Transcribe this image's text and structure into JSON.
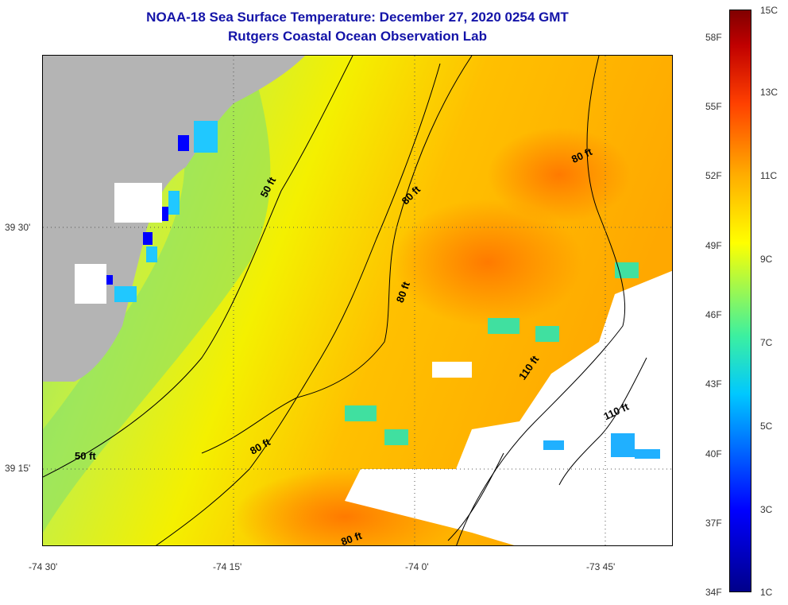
{
  "title": {
    "line1": "NOAA-18 Sea Surface Temperature:  December 27, 2020 0254 GMT",
    "line2": "Rutgers Coastal Ocean Observation Lab"
  },
  "axes": {
    "lat_labels": [
      "39 30'",
      "39 15'"
    ],
    "lon_labels": [
      "-74 30'",
      "-74 15'",
      "-74 0'",
      "-73 45'"
    ]
  },
  "contour_labels": [
    "50 ft",
    "50 ft",
    "80 ft",
    "80 ft",
    "80 ft",
    "80 ft",
    "80 ft",
    "110 ft",
    "110 ft"
  ],
  "colorbar": {
    "fahrenheit": [
      "58F",
      "55F",
      "52F",
      "49F",
      "46F",
      "43F",
      "40F",
      "37F",
      "34F"
    ],
    "celsius": [
      "15C",
      "13C",
      "11C",
      "9C",
      "7C",
      "5C",
      "3C",
      "1C"
    ]
  },
  "colors": {
    "title": "#1414a8",
    "land": "#b4b4b4",
    "cold": "#0000ff",
    "warm": "#ff8000"
  }
}
